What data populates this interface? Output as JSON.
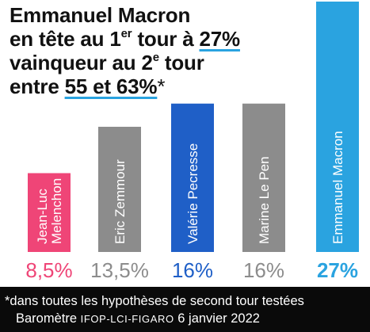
{
  "headline": {
    "l1": "Emmanuel Macron",
    "l2_a": "en tête au 1",
    "l2_sup": "er",
    "l2_b": " tour à ",
    "l2_u": "27%",
    "l3_a": "vainqueur au 2",
    "l3_sup": "e",
    "l3_b": " tour",
    "l4_a": "entre ",
    "l4_u": "55 et 63%",
    "l4_ast": "*"
  },
  "footer": {
    "note": "*dans toutes les hypothèses de second tour testées",
    "prefix": "Baromètre ",
    "source": "IFOP-LCI-FIGARO",
    "date": " 6 janvier 2022"
  },
  "chart_data": {
    "type": "bar",
    "categories": [
      "Jean-Luc Melenchon",
      "Eric Zemmour",
      "Valérie Pecresse",
      "Marine Le Pen",
      "Emmanuel Macron"
    ],
    "name_lines": [
      [
        "Jean-Luc",
        "Melenchon"
      ],
      [
        "Eric Zemmour"
      ],
      [
        "Valérie Pecresse"
      ],
      [
        "Marine Le Pen"
      ],
      [
        "Emmanuel Macron"
      ]
    ],
    "values": [
      8.5,
      13.5,
      16,
      16,
      27
    ],
    "value_labels": [
      "8,5%",
      "13,5%",
      "16%",
      "16%",
      "27%"
    ],
    "colors": [
      "#ef4577",
      "#8c8c8c",
      "#1f5fc7",
      "#8c8c8c",
      "#2aa3e0"
    ],
    "label_colors": [
      "#ef4577",
      "#8c8c8c",
      "#1f5fc7",
      "#8c8c8c",
      "#2aa3e0"
    ],
    "bold_labels": [
      false,
      false,
      false,
      false,
      true
    ],
    "ylim": [
      0,
      27
    ]
  }
}
